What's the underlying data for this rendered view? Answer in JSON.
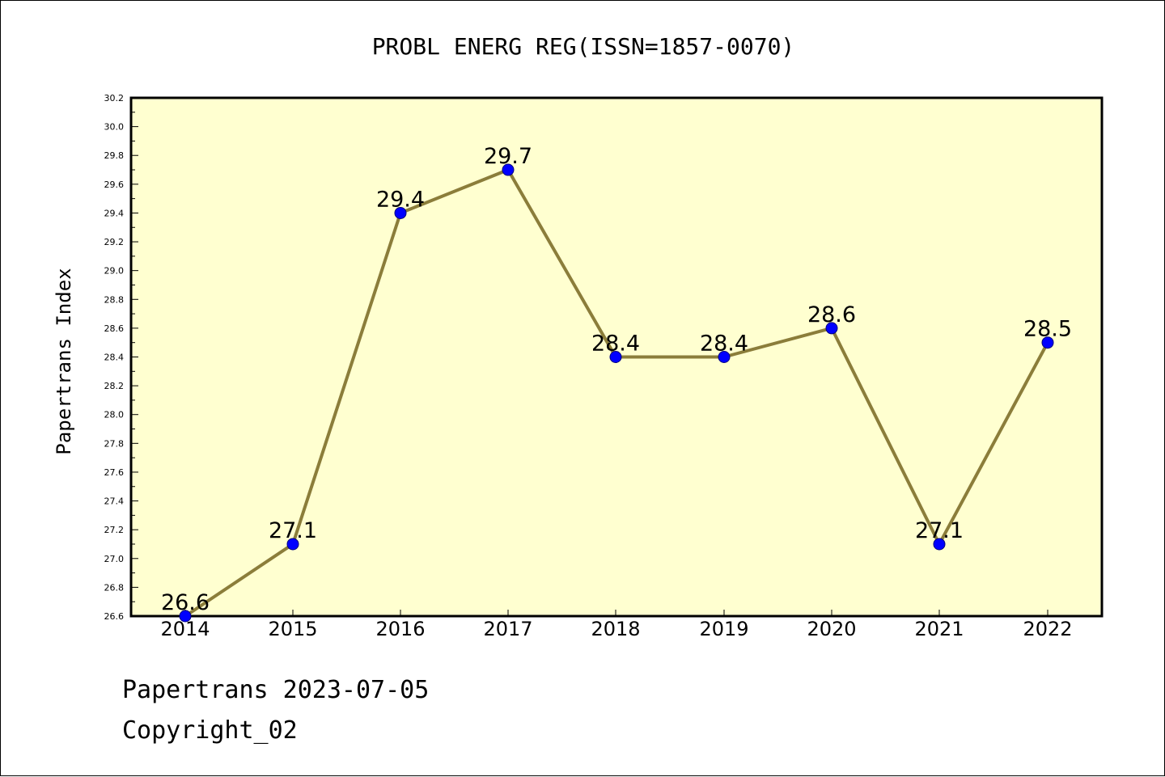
{
  "footer": {
    "brand_date": "Papertrans 2023-07-05",
    "copyright": "Copyright_02"
  },
  "colors": {
    "plot_background": "#ffffd0",
    "line": "#8b7d3a",
    "marker": "#0000ff",
    "marker_edge": "#000080",
    "axis": "#000000"
  },
  "chart_data": {
    "type": "line",
    "title": "PROBL ENERG REG(ISSN=1857-0070)",
    "xlabel": "",
    "ylabel": "Papertrans Index",
    "x": [
      "2014",
      "2015",
      "2016",
      "2017",
      "2018",
      "2019",
      "2020",
      "2021",
      "2022"
    ],
    "series": [
      {
        "values": [
          26.6,
          27.1,
          29.4,
          29.7,
          28.4,
          28.4,
          28.6,
          27.1,
          28.5
        ],
        "labels": [
          "26.6",
          "27.1",
          "29.4",
          "29.7",
          "28.4",
          "28.4",
          "28.6",
          "27.1",
          "28.5"
        ]
      }
    ],
    "ylim": [
      26.6,
      30.2
    ],
    "yticks": [
      "26.6",
      "26.8",
      "27.0",
      "27.2",
      "27.4",
      "27.6",
      "27.8",
      "28.0",
      "28.2",
      "28.4",
      "28.6",
      "28.8",
      "29.0",
      "29.2",
      "29.4",
      "29.6",
      "29.8",
      "30.0",
      "30.2"
    ],
    "grid": false,
    "legend": "none"
  }
}
